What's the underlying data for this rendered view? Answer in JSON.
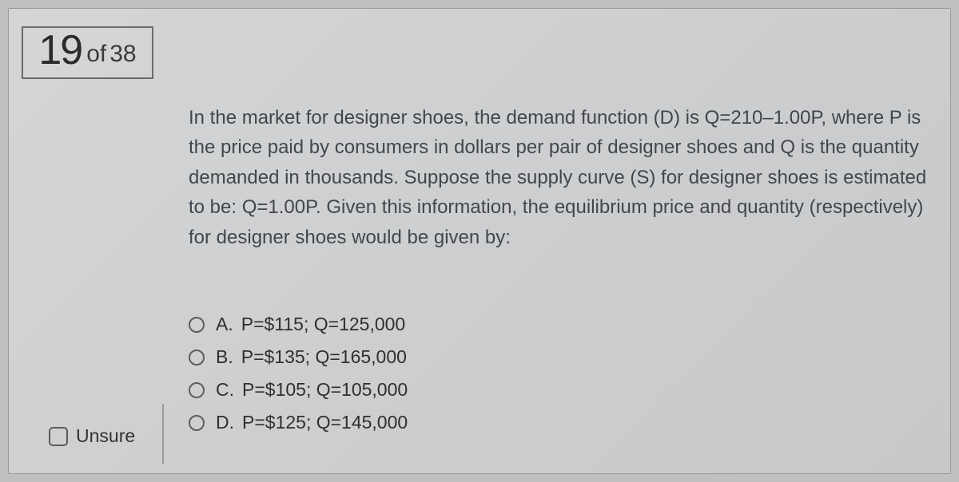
{
  "progress": {
    "current": "19",
    "of_label": "of",
    "total": "38"
  },
  "question": {
    "text": "In the market for designer shoes, the demand function (D) is Q=210–1.00P, where P is the price paid by consumers in dollars per pair of designer shoes and Q is the quantity demanded in thousands.  Suppose the supply curve (S) for designer shoes is estimated to be: Q=1.00P.  Given this information, the equilibrium price and quantity (respectively) for designer shoes would be given by:"
  },
  "options": [
    {
      "letter": "A.",
      "text": "P=$115; Q=125,000"
    },
    {
      "letter": "B.",
      "text": "P=$135; Q=165,000"
    },
    {
      "letter": "C.",
      "text": "P=$105; Q=105,000"
    },
    {
      "letter": "D.",
      "text": "P=$125; Q=145,000"
    }
  ],
  "unsure": {
    "label": "Unsure",
    "checked": false
  },
  "styling": {
    "page_bg": "#c0c0c0",
    "paper_gradient_start": "#d4d5d6",
    "paper_gradient_end": "#c8c9ca",
    "border_color": "#6b6b6b",
    "question_text_color": "#40474d",
    "option_text_color": "#2f2f2f",
    "question_fontsize": 24,
    "option_fontsize": 23,
    "qnum_current_fontsize": 52,
    "qnum_rest_fontsize": 30
  }
}
